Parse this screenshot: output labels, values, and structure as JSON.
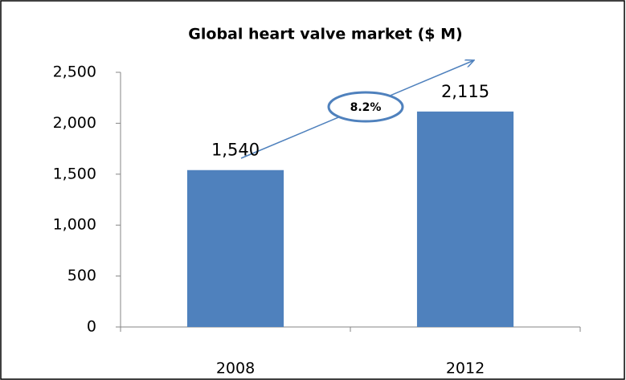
{
  "chart_data": {
    "type": "bar",
    "title": "Global heart valve market ($ M)",
    "categories": [
      "2008",
      "2012"
    ],
    "values": [
      1540,
      2115
    ],
    "value_labels": [
      "1,540",
      "2,115"
    ],
    "color": "#4f81bd",
    "ylim": [
      0,
      2500
    ],
    "yticks": [
      0,
      500,
      {
        "value": 1000,
        "label": "1,000"
      },
      {
        "value": 1500,
        "label": "1,500"
      },
      {
        "value": 2000,
        "label": "2,000"
      },
      {
        "value": 2500,
        "label": "2,500"
      }
    ],
    "grid": false,
    "annotation": "8.2%"
  }
}
